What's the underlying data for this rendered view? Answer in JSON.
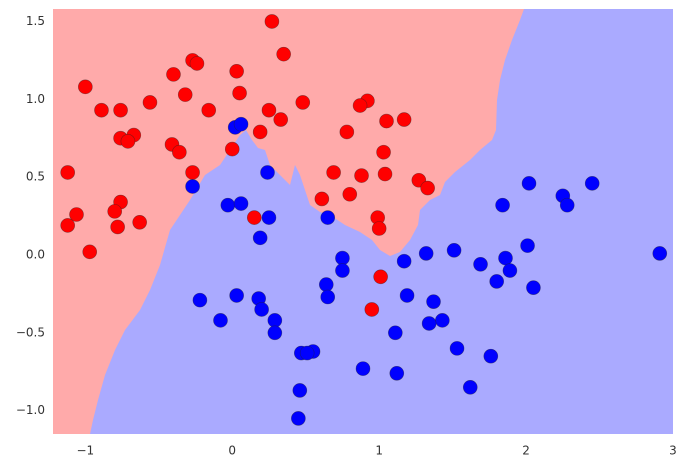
{
  "chart_data": {
    "type": "scatter",
    "xlim": [
      -1.22,
      3.0
    ],
    "ylim": [
      -1.15,
      1.58
    ],
    "xticks": [
      {
        "value": -1,
        "label": "−1"
      },
      0,
      1,
      2,
      3
    ],
    "yticks": [
      {
        "value": -1.0,
        "label": "−1.0"
      },
      {
        "value": -0.5,
        "label": "−0.5"
      },
      {
        "value": 0.0,
        "label": "0.0"
      },
      {
        "value": 0.5,
        "label": "0.5"
      },
      {
        "value": 1.0,
        "label": "1.0"
      },
      {
        "value": 1.5,
        "label": "1.5"
      }
    ],
    "grid": false,
    "series": [
      {
        "color": "#ff0000",
        "x": [
          0.27,
          0.35,
          -0.27,
          -0.24,
          -1.0,
          -0.4,
          0.03,
          -0.56,
          -0.32,
          0.05,
          -0.89,
          -0.76,
          -0.16,
          0.48,
          0.25,
          0.33,
          0.92,
          0.87,
          0.78,
          1.05,
          1.17,
          0.19,
          -0.76,
          -0.67,
          -0.71,
          -0.41,
          -0.36,
          0.0,
          1.03,
          -1.12,
          -0.27,
          0.69,
          0.88,
          1.04,
          1.27,
          1.33,
          0.8,
          0.61,
          -0.76,
          -0.8,
          -1.06,
          -0.63,
          -1.12,
          -0.78,
          0.15,
          0.99,
          1.0,
          -0.97,
          1.01,
          0.95
        ],
        "values": [
          1.5,
          1.29,
          1.25,
          1.23,
          1.08,
          1.16,
          1.18,
          0.98,
          1.03,
          1.04,
          0.93,
          0.93,
          0.93,
          0.98,
          0.93,
          0.87,
          0.99,
          0.96,
          0.79,
          0.86,
          0.87,
          0.79,
          0.75,
          0.77,
          0.73,
          0.71,
          0.66,
          0.68,
          0.66,
          0.53,
          0.53,
          0.53,
          0.51,
          0.52,
          0.48,
          0.43,
          0.39,
          0.36,
          0.34,
          0.28,
          0.26,
          0.21,
          0.19,
          0.18,
          0.24,
          0.24,
          0.17,
          0.02,
          -0.14,
          -0.35
        ]
      },
      {
        "color": "#0000ff",
        "x": [
          0.02,
          0.06,
          -0.27,
          0.24,
          -0.03,
          0.06,
          0.25,
          0.65,
          0.19,
          2.02,
          2.45,
          2.25,
          2.28,
          1.84,
          2.01,
          1.51,
          1.32,
          2.91,
          0.75,
          0.75,
          1.17,
          1.69,
          1.86,
          1.89,
          1.8,
          0.64,
          0.65,
          2.05,
          1.19,
          0.03,
          -0.22,
          0.18,
          1.37,
          0.2,
          0.29,
          1.43,
          1.34,
          -0.08,
          0.29,
          1.11,
          1.53,
          0.47,
          0.55,
          0.51,
          1.76,
          0.89,
          1.12,
          1.62,
          0.46,
          0.45
        ],
        "values": [
          0.82,
          0.84,
          0.44,
          0.53,
          0.32,
          0.33,
          0.24,
          0.24,
          0.11,
          0.46,
          0.46,
          0.38,
          0.32,
          0.32,
          0.06,
          0.03,
          0.01,
          0.01,
          -0.02,
          -0.1,
          -0.04,
          -0.06,
          -0.02,
          -0.1,
          -0.17,
          -0.19,
          -0.27,
          -0.21,
          -0.26,
          -0.26,
          -0.29,
          -0.28,
          -0.3,
          -0.35,
          -0.42,
          -0.42,
          -0.44,
          -0.42,
          -0.5,
          -0.5,
          -0.6,
          -0.63,
          -0.62,
          -0.63,
          -0.65,
          -0.73,
          -0.76,
          -0.85,
          -0.87,
          -1.05
        ]
      }
    ]
  }
}
